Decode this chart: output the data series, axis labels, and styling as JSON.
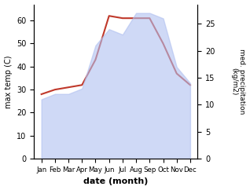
{
  "months": [
    "Jan",
    "Feb",
    "Mar",
    "Apr",
    "May",
    "Jun",
    "Jul",
    "Aug",
    "Sep",
    "Oct",
    "Nov",
    "Dec"
  ],
  "temp": [
    28,
    30,
    31,
    32,
    43,
    62,
    61,
    61,
    61,
    50,
    37,
    32
  ],
  "precip": [
    11,
    12,
    12,
    13,
    21,
    24,
    23,
    27,
    27,
    26,
    17,
    14
  ],
  "temp_color": "#c0392b",
  "precip_color": "#b0c0f0",
  "precip_alpha": 0.6,
  "left_ylabel": "max temp (C)",
  "right_ylabel": "med. precipitation\n(kg/m2)",
  "xlabel": "date (month)",
  "ylim_left": [
    0,
    67
  ],
  "ylim_right": [
    0,
    28.6
  ],
  "yticks_left": [
    0,
    10,
    20,
    30,
    40,
    50,
    60
  ],
  "yticks_right": [
    0,
    5,
    10,
    15,
    20,
    25
  ],
  "bg_color": "#ffffff"
}
